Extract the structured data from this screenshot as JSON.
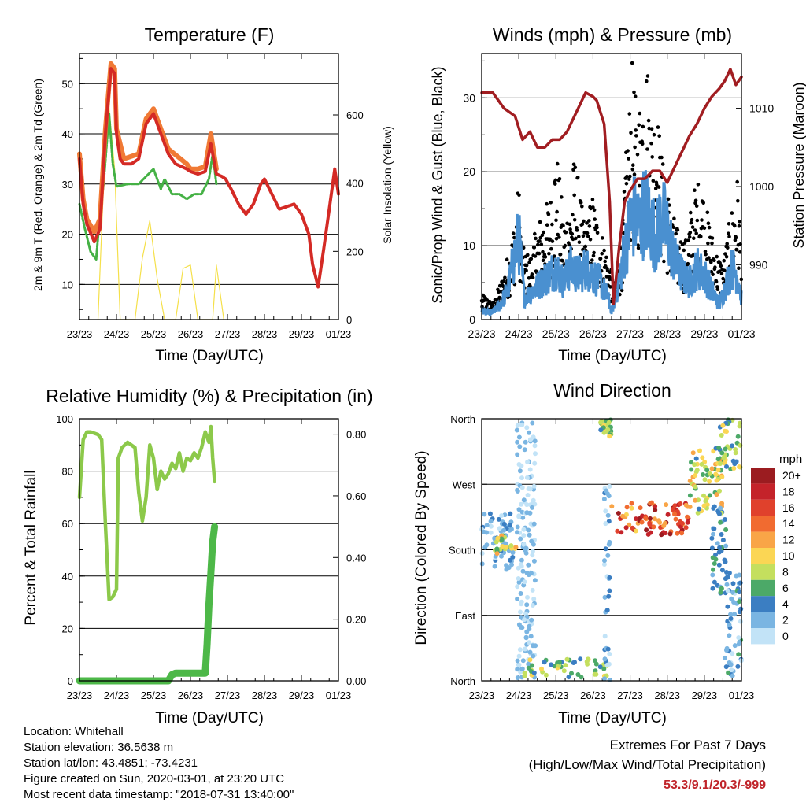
{
  "chart_data": [
    {
      "id": "temp",
      "type": "line",
      "title": "Temperature (F)",
      "xlabel": "Time (Day/UTC)",
      "ylabel": "2m & 9m T (Red, Orange) & 2m Td (Green)",
      "y2label": "Solar Insolation (Yellow)",
      "xticks": [
        "23/23",
        "24/23",
        "25/23",
        "26/23",
        "27/23",
        "28/23",
        "29/23",
        "01/23"
      ],
      "xlim": [
        0,
        7
      ],
      "ylim": [
        3,
        56
      ],
      "yticks": [
        10,
        20,
        30,
        40,
        50
      ],
      "y2lim": [
        0,
        780
      ],
      "y2ticks": [
        0,
        200,
        400,
        600
      ],
      "series": [
        {
          "name": "2m T",
          "color": "#d42a25",
          "x": [
            0,
            0.1,
            0.2,
            0.4,
            0.55,
            0.7,
            0.85,
            0.95,
            1.0,
            1.1,
            1.2,
            1.4,
            1.6,
            1.8,
            2.0,
            2.2,
            2.4,
            2.6,
            2.75,
            2.9,
            3.0,
            3.2,
            3.4,
            3.55,
            3.7,
            3.85,
            3.95,
            4.1,
            4.3,
            4.5,
            4.7,
            4.9,
            5.0,
            5.2,
            5.4,
            5.6,
            5.8,
            6.0,
            6.2,
            6.3,
            6.45,
            6.6,
            6.75,
            6.9,
            7.0
          ],
          "y": [
            35,
            26,
            22,
            18.5,
            21,
            40,
            53,
            52,
            40,
            35,
            34,
            34,
            35,
            42,
            44,
            40,
            36,
            34,
            33.5,
            33,
            32.5,
            32,
            32.5,
            38,
            32,
            31.5,
            31,
            29,
            26,
            24,
            26,
            30,
            31,
            28,
            25,
            25.5,
            26,
            24,
            20,
            14,
            9.5,
            17,
            25,
            33,
            28
          ]
        },
        {
          "name": "9m T",
          "color": "#f07a35",
          "x": [
            0,
            0.1,
            0.2,
            0.4,
            0.55,
            0.7,
            0.85,
            0.95,
            1.0,
            1.2,
            1.6,
            1.8,
            2.0,
            2.4,
            2.9,
            3.0,
            3.2,
            3.4,
            3.55,
            3.7
          ],
          "y": [
            36,
            27,
            23,
            20.5,
            23,
            41,
            54,
            53,
            41,
            35,
            36,
            43,
            45,
            37,
            34,
            33,
            33,
            33.5,
            40,
            33
          ]
        },
        {
          "name": "2m Td",
          "color": "#45b145",
          "x": [
            0,
            0.15,
            0.3,
            0.45,
            0.55,
            0.65,
            0.8,
            0.9,
            1.0,
            1.3,
            1.6,
            1.8,
            2.0,
            2.2,
            2.3,
            2.5,
            2.7,
            2.9,
            3.1,
            3.3,
            3.5,
            3.6,
            3.7
          ],
          "y": [
            26,
            21,
            16.5,
            15,
            24,
            30,
            44,
            34,
            29.5,
            30,
            30,
            31.5,
            33,
            29,
            31,
            28,
            28,
            27,
            28,
            28,
            31,
            36,
            30
          ]
        },
        {
          "name": "Solar Insolation",
          "axis": "y2",
          "color": "#f5e04a",
          "x": [
            0.5,
            0.65,
            0.8,
            0.95,
            1.1,
            1.5,
            1.7,
            1.9,
            2.1,
            2.3,
            2.6,
            2.8,
            3.0,
            3.2,
            3.6,
            3.7,
            3.9
          ],
          "y": [
            0,
            400,
            620,
            440,
            0,
            0,
            180,
            290,
            120,
            0,
            0,
            150,
            160,
            0,
            0,
            160,
            0
          ]
        }
      ]
    },
    {
      "id": "wind",
      "type": "line",
      "title": "Winds (mph) & Pressure (mb)",
      "xlabel": "Time (Day/UTC)",
      "ylabel": "Sonic/Prop Wind & Gust (Blue, Black)",
      "y2label": "Station Pressure (Maroon)",
      "xticks": [
        "23/23",
        "24/23",
        "25/23",
        "26/23",
        "27/23",
        "28/23",
        "29/23",
        "01/23"
      ],
      "xlim": [
        0,
        7
      ],
      "ylim": [
        0,
        36
      ],
      "yticks": [
        0,
        10,
        20,
        30
      ],
      "y2lim": [
        983,
        1017
      ],
      "y2ticks": [
        990,
        1000,
        1010
      ],
      "series": [
        {
          "name": "Station Pressure",
          "axis": "y2",
          "color": "#a11d21",
          "x": [
            0,
            0.3,
            0.6,
            0.9,
            1.1,
            1.3,
            1.5,
            1.7,
            1.9,
            2.1,
            2.3,
            2.6,
            2.8,
            3.0,
            3.1,
            3.3,
            3.45,
            3.55,
            3.7,
            3.85,
            4.0,
            4.2,
            4.4,
            4.6,
            4.8,
            5.0,
            5.2,
            5.4,
            5.6,
            5.8,
            6.0,
            6.2,
            6.4,
            6.55,
            6.7,
            6.85,
            7.0
          ],
          "y": [
            1012,
            1012,
            1010,
            1009,
            1006,
            1007,
            1005,
            1005,
            1006,
            1006,
            1007,
            1010,
            1012,
            1011.5,
            1011,
            1008,
            998,
            985,
            992,
            998,
            999.5,
            1001,
            1001,
            1002,
            1002,
            1000.5,
            1002.5,
            1004.5,
            1006.5,
            1008,
            1010,
            1011.5,
            1012.5,
            1013.5,
            1015,
            1013,
            1014
          ]
        },
        {
          "name": "Wind",
          "color": "#4a90d0",
          "x": [
            0,
            0.3,
            0.5,
            0.7,
            0.9,
            1.0,
            1.15,
            1.4,
            1.6,
            1.8,
            2.0,
            2.2,
            2.4,
            2.6,
            2.8,
            3.0,
            3.2,
            3.4,
            3.5,
            3.6,
            3.7,
            3.8,
            3.95,
            4.1,
            4.25,
            4.4,
            4.55,
            4.7,
            4.85,
            5.0,
            5.2,
            5.4,
            5.6,
            5.8,
            6.0,
            6.2,
            6.4,
            6.6,
            6.75,
            6.9,
            7.0
          ],
          "y": [
            1,
            1,
            2,
            4,
            9,
            11,
            3,
            4,
            5,
            6,
            7,
            5,
            7,
            6,
            7,
            6,
            5,
            3,
            1,
            3,
            5,
            8,
            12,
            14,
            13,
            15,
            13,
            11,
            14,
            12,
            8,
            6,
            5,
            7,
            6,
            4,
            2,
            5,
            7,
            6,
            3
          ]
        },
        {
          "name": "Gust",
          "type": "scatter",
          "color": "#000000",
          "x": [
            0.1,
            0.3,
            0.6,
            0.8,
            1.0,
            1.1,
            1.3,
            1.5,
            1.7,
            1.9,
            2.0,
            2.2,
            2.4,
            2.5,
            2.7,
            2.8,
            3.0,
            3.1,
            3.3,
            3.5,
            3.6,
            3.8,
            3.9,
            4.0,
            4.05,
            4.2,
            4.3,
            4.45,
            4.6,
            4.7,
            4.8,
            4.9,
            5.0,
            5.1,
            5.3,
            5.5,
            5.7,
            5.9,
            6.1,
            6.3,
            6.5,
            6.7,
            6.9,
            7.0
          ],
          "y": [
            3,
            2,
            6,
            10,
            17,
            9,
            8,
            12,
            14,
            16,
            22,
            13,
            15,
            21,
            14,
            12,
            16,
            13,
            10,
            6,
            4,
            12,
            22,
            28,
            32,
            25,
            30,
            33,
            26,
            28,
            23,
            19,
            17,
            14,
            11,
            10,
            16,
            18,
            13,
            9,
            7,
            13,
            18,
            9
          ]
        }
      ]
    },
    {
      "id": "rh",
      "type": "line",
      "title": "Relative Humidity (%) & Precipitation (in)",
      "xlabel": "Time (Day/UTC)",
      "ylabel": "Percent & Total Rainfall",
      "xticks": [
        "23/23",
        "24/23",
        "25/23",
        "26/23",
        "27/23",
        "28/23",
        "29/23",
        "01/23"
      ],
      "xlim": [
        0,
        7
      ],
      "ylim": [
        0,
        100
      ],
      "yticks": [
        0,
        20,
        40,
        60,
        80,
        100
      ],
      "y2lim": [
        0,
        0.85
      ],
      "y2ticks": [
        "0.00",
        "0.20",
        "0.40",
        "0.60",
        "0.80"
      ],
      "series": [
        {
          "name": "Relative Humidity",
          "color": "#8cc94a",
          "x": [
            0,
            0.1,
            0.2,
            0.3,
            0.5,
            0.6,
            0.7,
            0.8,
            0.9,
            1.0,
            1.05,
            1.15,
            1.3,
            1.5,
            1.6,
            1.7,
            1.8,
            1.9,
            2.0,
            2.1,
            2.2,
            2.3,
            2.4,
            2.5,
            2.6,
            2.7,
            2.8,
            2.9,
            3.0,
            3.1,
            3.2,
            3.3,
            3.4,
            3.5,
            3.55,
            3.6,
            3.65
          ],
          "y": [
            70,
            92,
            95,
            95,
            94,
            92,
            60,
            31,
            32,
            35,
            85,
            89,
            91,
            89,
            72,
            61,
            70,
            90,
            85,
            73,
            80,
            77,
            79,
            83,
            81,
            87,
            80,
            85,
            84,
            87,
            85,
            89,
            95,
            91,
            97,
            85,
            76
          ]
        },
        {
          "name": "Total Rainfall",
          "axis": "y2",
          "color": "#4db848",
          "x": [
            0,
            1.0,
            2.0,
            2.4,
            2.5,
            2.6,
            3.0,
            3.4,
            3.45,
            3.5,
            3.55,
            3.6,
            3.65
          ],
          "y": [
            0,
            0,
            0,
            0,
            0.02,
            0.025,
            0.025,
            0.025,
            0.12,
            0.25,
            0.35,
            0.45,
            0.5
          ]
        }
      ]
    },
    {
      "id": "dir",
      "type": "scatter",
      "title": "Wind Direction",
      "xlabel": "Time (Day/UTC)",
      "ylabel": "Direction (Colored By Speed)",
      "xticks": [
        "23/23",
        "24/23",
        "25/23",
        "26/23",
        "27/23",
        "28/23",
        "29/23",
        "01/23"
      ],
      "xlim": [
        0,
        7
      ],
      "ylim": [
        0,
        360
      ],
      "yticks": [
        "North",
        "East",
        "South",
        "West",
        "North"
      ],
      "legend_title": "mph",
      "legend": [
        "20+",
        "18",
        "16",
        "14",
        "12",
        "10",
        "8",
        "6",
        "4",
        "2",
        "0"
      ],
      "legend_colors": [
        "#9b1c20",
        "#c4232a",
        "#e0412c",
        "#f16b30",
        "#f9a547",
        "#fbd654",
        "#c4df5e",
        "#4ca968",
        "#3b7ec2",
        "#7ab5e2",
        "#c2e3f7"
      ],
      "clusters": [
        {
          "x": [
            0,
            0.85
          ],
          "y": [
            150,
            230
          ],
          "speed": [
            0,
            4
          ]
        },
        {
          "x": [
            0.35,
            0.95
          ],
          "y": [
            175,
            200
          ],
          "speed": [
            6,
            12
          ]
        },
        {
          "x": [
            0.95,
            1.45
          ],
          "y": [
            180,
            360
          ],
          "speed": [
            0,
            2
          ]
        },
        {
          "x": [
            0.95,
            1.45
          ],
          "y": [
            0,
            180
          ],
          "speed": [
            0,
            2
          ]
        },
        {
          "x": [
            1.15,
            3.4
          ],
          "y": [
            5,
            30
          ],
          "speed": [
            4,
            10
          ]
        },
        {
          "x": [
            3.2,
            3.5
          ],
          "y": [
            335,
            360
          ],
          "speed": [
            4,
            10
          ]
        },
        {
          "x": [
            3.3,
            3.45
          ],
          "y": [
            0,
            270
          ],
          "speed": [
            0,
            4
          ]
        },
        {
          "x": [
            3.5,
            5.6
          ],
          "y": [
            200,
            245
          ],
          "speed": [
            10,
            20
          ]
        },
        {
          "x": [
            5.6,
            6.5
          ],
          "y": [
            230,
            320
          ],
          "speed": [
            4,
            12
          ]
        },
        {
          "x": [
            6.2,
            6.6
          ],
          "y": [
            120,
            240
          ],
          "speed": [
            2,
            6
          ]
        },
        {
          "x": [
            6.4,
            7.0
          ],
          "y": [
            290,
            360
          ],
          "speed": [
            4,
            10
          ]
        },
        {
          "x": [
            6.55,
            7.0
          ],
          "y": [
            0,
            150
          ],
          "speed": [
            0,
            6
          ]
        }
      ]
    }
  ],
  "info": {
    "location": "Location: Whitehall",
    "elevation": "Station elevation: 36.5638 m",
    "latlon": "Station lat/lon: 43.4851; -73.4231",
    "created": "Figure created on Sun, 2020-03-01, at 23:20 UTC",
    "recent": "Most recent data timestamp: \"2018-07-31 13:40:00\""
  },
  "extremes": {
    "line1": "Extremes For Past 7 Days",
    "line2": "(High/Low/Max Wind/Total Precipitation)",
    "value": "53.3/9.1/20.3/-999"
  }
}
